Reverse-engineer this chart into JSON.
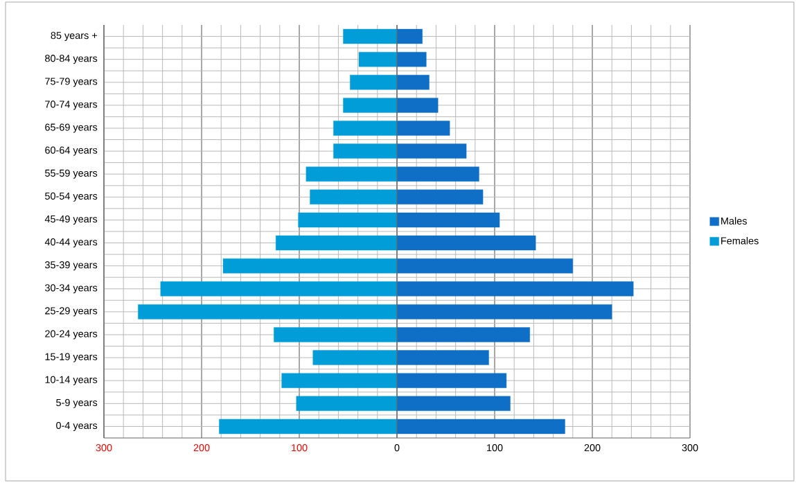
{
  "chart_data": {
    "type": "bar",
    "orientation": "horizontal",
    "categories": [
      "85 years +",
      "80-84 years",
      "75-79 years",
      "70-74 years",
      "65-69 years",
      "60-64 years",
      "55-59 years",
      "50-54 years",
      "45-49 years",
      "40-44 years",
      "35-39 years",
      "30-34 years",
      "25-29 years",
      "20-24 years",
      "15-19 years",
      "10-14 years",
      "5-9 years",
      "0-4 years"
    ],
    "series": [
      {
        "name": "Males",
        "color": "#0f6fc6",
        "values": [
          26,
          30,
          33,
          42,
          54,
          71,
          84,
          88,
          105,
          142,
          180,
          242,
          220,
          136,
          94,
          112,
          116,
          172
        ]
      },
      {
        "name": "Females",
        "color": "#009dd9",
        "values": [
          -55,
          -39,
          -48,
          -55,
          -65,
          -65,
          -93,
          -89,
          -101,
          -124,
          -178,
          -242,
          -265,
          -126,
          -86,
          -118,
          -103,
          -182
        ]
      }
    ],
    "xlim": [
      -300,
      300
    ],
    "xticks": [
      {
        "value": -300,
        "label": "300"
      },
      {
        "value": -200,
        "label": "200"
      },
      {
        "value": -100,
        "label": "100"
      },
      0,
      100,
      200,
      300
    ],
    "stacked": true,
    "grid": true,
    "legend": "right"
  }
}
